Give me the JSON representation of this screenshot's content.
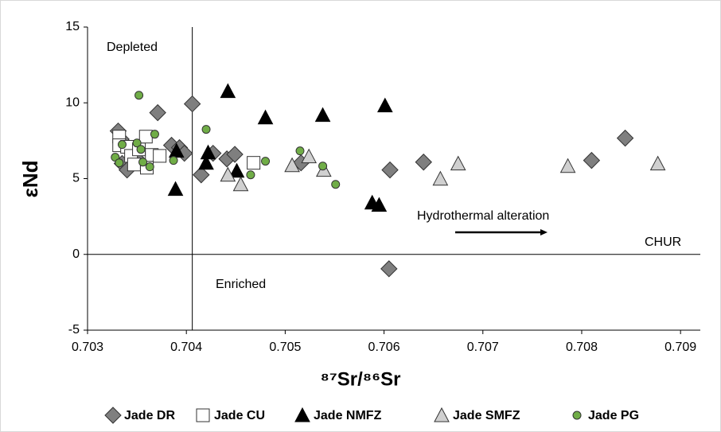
{
  "chart_data": {
    "type": "scatter",
    "xlabel": "⁸⁷Sr/⁸⁶Sr",
    "ylabel": "εNd",
    "xlim": [
      0.703,
      0.7092
    ],
    "ylim": [
      -5,
      15
    ],
    "xticks": [
      0.703,
      0.704,
      0.705,
      0.706,
      0.707,
      0.708,
      0.709
    ],
    "yticks": [
      -5,
      0,
      5,
      10,
      15
    ],
    "vline": 0.70406,
    "hline": 0,
    "annotations": [
      "Depleted",
      "Enriched",
      "Hydrothermal alteration",
      "CHUR"
    ],
    "legend": "bottom",
    "series": [
      {
        "name": "Jade DR",
        "marker": "diamond",
        "color": "#7f7f7f",
        "x": [
          0.70331,
          0.70334,
          0.70335,
          0.7034,
          0.7035,
          0.70371,
          0.70385,
          0.70393,
          0.70398,
          0.70406,
          0.70415,
          0.70427,
          0.70441,
          0.70449,
          0.70516,
          0.70606,
          0.7064,
          0.70605,
          0.7081,
          0.70844
        ],
        "y": [
          8.14,
          7.6,
          6.0,
          5.57,
          6.3,
          9.35,
          7.2,
          7.04,
          6.67,
          9.93,
          5.25,
          6.67,
          6.3,
          6.6,
          6.04,
          5.57,
          6.09,
          -0.95,
          6.2,
          7.67
        ]
      },
      {
        "name": "Jade CU",
        "marker": "square",
        "color": "#ffffff",
        "x": [
          0.70332,
          0.70332,
          0.7034,
          0.70344,
          0.70347,
          0.70352,
          0.70359,
          0.7036,
          0.70365,
          0.70373,
          0.70468
        ],
        "y": [
          7.77,
          7.2,
          7.1,
          6.5,
          5.93,
          6.93,
          7.77,
          5.72,
          6.56,
          6.5,
          6.04
        ]
      },
      {
        "name": "Jade NMFZ",
        "marker": "triangle",
        "color": "#000000",
        "x": [
          0.70389,
          0.7039,
          0.7042,
          0.70422,
          0.70442,
          0.70451,
          0.7048,
          0.70538,
          0.70588,
          0.70595,
          0.70601
        ],
        "y": [
          4.31,
          6.83,
          6.04,
          6.72,
          10.77,
          5.51,
          9.03,
          9.19,
          3.41,
          3.26,
          9.82
        ]
      },
      {
        "name": "Jade SMFZ",
        "marker": "triangle",
        "color": "#d0d0d0",
        "x": [
          0.70442,
          0.70455,
          0.70507,
          0.70524,
          0.70539,
          0.70657,
          0.70675,
          0.70786,
          0.70877
        ],
        "y": [
          5.25,
          4.62,
          5.88,
          6.46,
          5.57,
          4.99,
          5.99,
          5.83,
          5.99
        ]
      },
      {
        "name": "Jade PG",
        "marker": "circle",
        "color": "#70ad47",
        "x": [
          0.70328,
          0.70332,
          0.70335,
          0.7035,
          0.70352,
          0.70354,
          0.70356,
          0.70363,
          0.70368,
          0.70387,
          0.7042,
          0.70465,
          0.7048,
          0.70515,
          0.70538,
          0.70551
        ],
        "y": [
          6.41,
          6.04,
          7.25,
          7.35,
          10.5,
          6.93,
          6.09,
          5.78,
          7.93,
          6.2,
          8.25,
          5.25,
          6.15,
          6.83,
          5.83,
          4.62
        ]
      }
    ]
  }
}
